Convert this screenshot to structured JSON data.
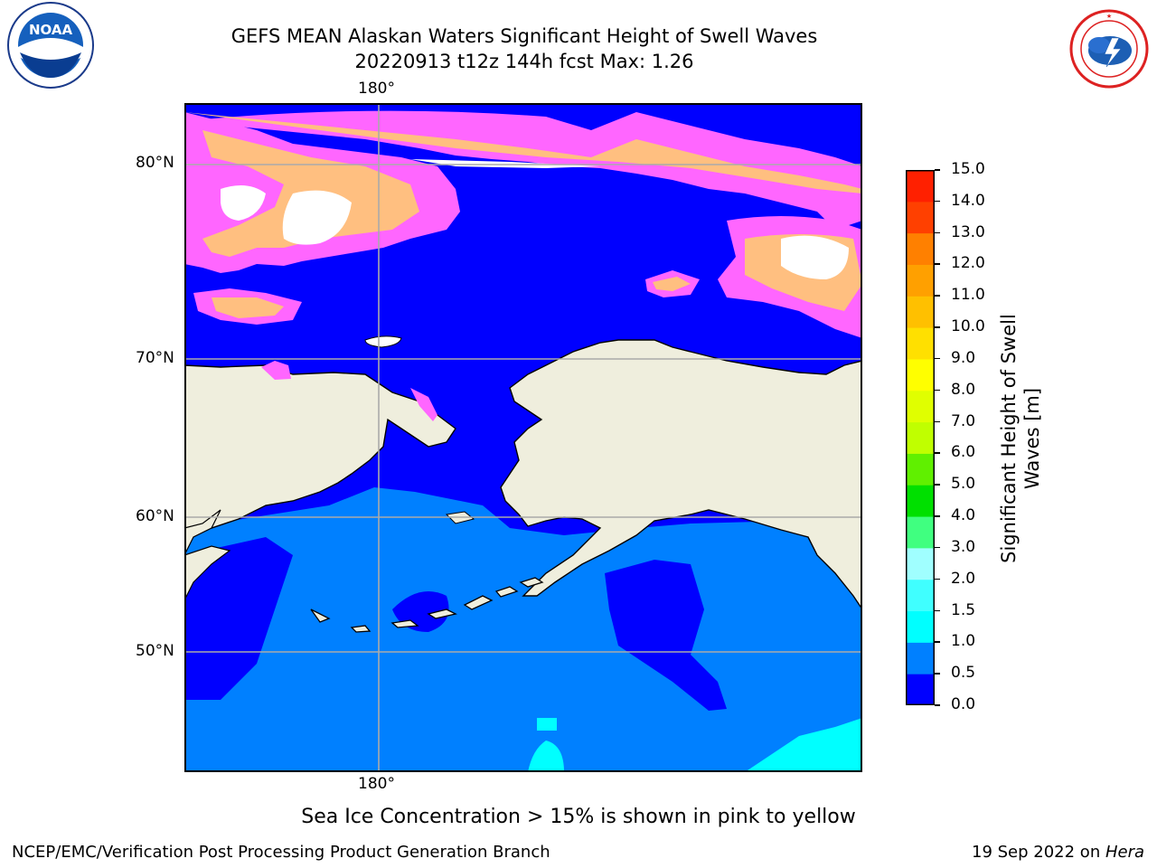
{
  "header": {
    "title_line1": "GEFS MEAN Alaskan Waters Significant Height of Swell Waves",
    "title_line2": "20220913 t12z 144h fcst   Max: 1.26"
  },
  "logos": {
    "left": {
      "text": "NOAA",
      "ring_text": "NATIONAL OCEANIC AND ATMOSPHERIC ADMINISTRATION · U.S. DEPARTMENT OF COMMERCE"
    },
    "right": {
      "ring_text": "NATIONAL WEATHER SERVICE"
    }
  },
  "map": {
    "lon_label_top": "180°",
    "lon_label_bottom": "180°",
    "lat_labels": [
      "80°N",
      "70°N",
      "60°N",
      "50°N"
    ],
    "colors": {
      "frame": "#000000",
      "grid": "#aaaaaa",
      "land": "#efeedd",
      "sea_deep": "#0000ff",
      "sea_mid": "#0080ff",
      "sea_light": "#00ffff",
      "ice_pink": "#ff66ff",
      "ice_orange": "#ffbf80",
      "ice_white": "#ffffff"
    }
  },
  "colorbar": {
    "title": "Significant Height of Swell Waves [m]",
    "title_line1": "Significant Height of Swell",
    "title_line2": "Waves [m]",
    "ticks": [
      "0.0",
      "0.5",
      "1.0",
      "1.5",
      "2.0",
      "3.0",
      "4.0",
      "5.0",
      "6.0",
      "7.0",
      "8.0",
      "9.0",
      "10.0",
      "11.0",
      "12.0",
      "13.0",
      "14.0",
      "15.0"
    ],
    "colors": [
      "#0000ff",
      "#0080ff",
      "#00ffff",
      "#40ffff",
      "#a0ffff",
      "#40ff80",
      "#00e000",
      "#60f000",
      "#c0ff00",
      "#e0ff00",
      "#ffff00",
      "#ffe000",
      "#ffc000",
      "#ffa000",
      "#ff8000",
      "#ff4000",
      "#ff2000",
      "#ff0000"
    ]
  },
  "note": "Sea Ice Concentration > 15% is shown in pink to yellow",
  "footer": {
    "left": "NCEP/EMC/Verification Post Processing Product Generation Branch",
    "right_prefix": "19 Sep 2022 on ",
    "right_host": "Hera"
  }
}
